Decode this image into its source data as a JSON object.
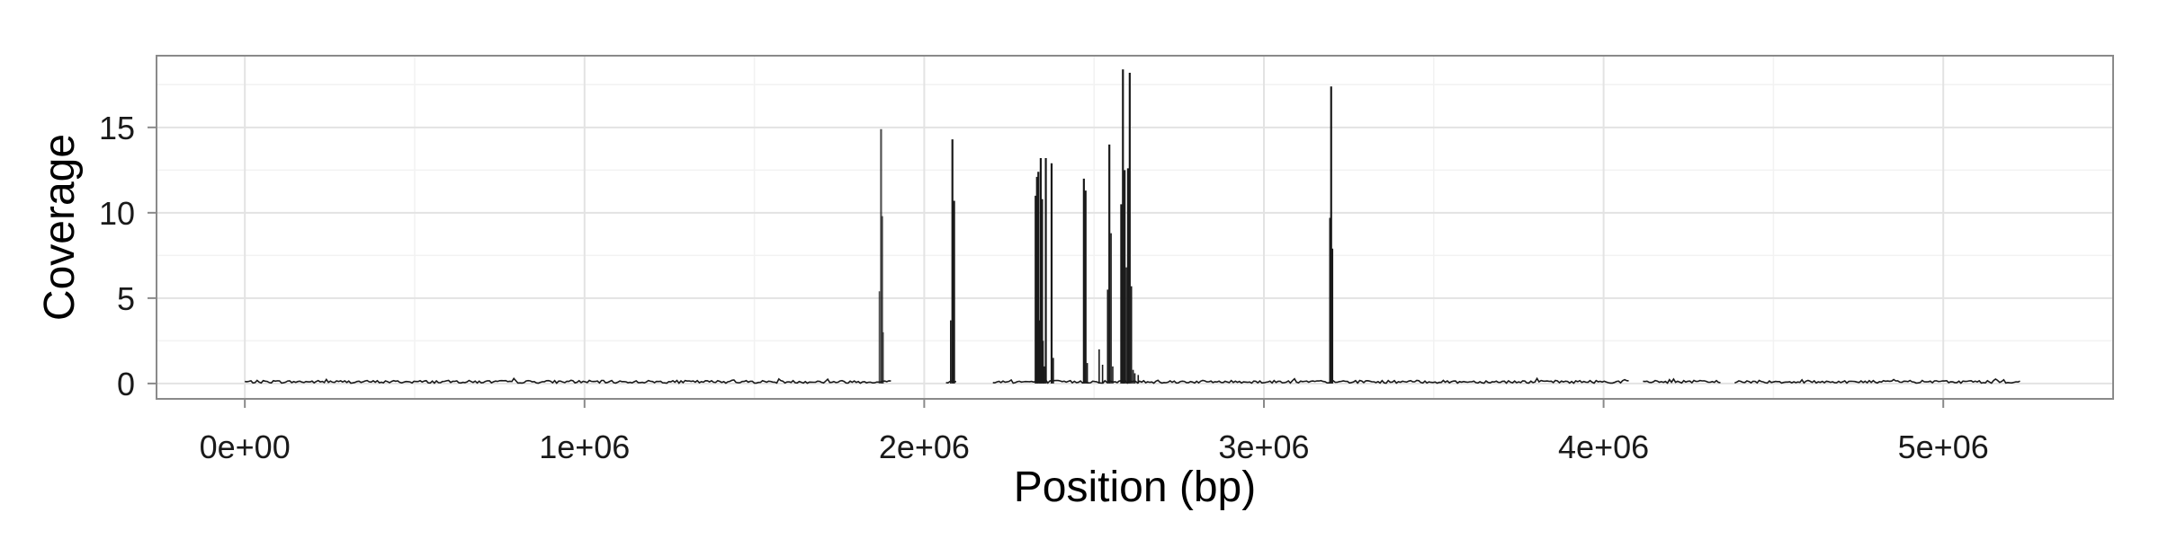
{
  "chart_data": {
    "type": "area",
    "title": "",
    "xlabel": "Position (bp)",
    "ylabel": "Coverage",
    "xlim": [
      -260000,
      5500000
    ],
    "ylim": [
      -0.9,
      19.2
    ],
    "x_ticks": [
      0,
      1000000,
      2000000,
      3000000,
      4000000,
      5000000
    ],
    "x_tick_labels": [
      "0e+00",
      "1e+06",
      "2e+06",
      "3e+06",
      "4e+06",
      "5e+06"
    ],
    "y_ticks": [
      0,
      5,
      10,
      15
    ],
    "y_tick_labels": [
      "0",
      "5",
      "10",
      "15"
    ],
    "grid": true,
    "legend": "none",
    "genome_length": 5230000,
    "background_coverage": 0.1,
    "gaps": [
      [
        1905000,
        2060000
      ],
      [
        2095000,
        2200000
      ],
      [
        4075000,
        4110000
      ],
      [
        4350000,
        4385000
      ]
    ],
    "peaks": {
      "x": [
        1868000,
        1873000,
        1876000,
        1879000,
        2078000,
        2083000,
        2088000,
        2328000,
        2332000,
        2336000,
        2340000,
        2343000,
        2347000,
        2350000,
        2353000,
        2358000,
        2375000,
        2380000,
        2470000,
        2475000,
        2480000,
        2515000,
        2525000,
        2540000,
        2545000,
        2550000,
        2555000,
        2580000,
        2585000,
        2590000,
        2595000,
        2600000,
        2605000,
        2610000,
        2615000,
        2620000,
        2630000,
        3195000,
        3198000,
        3202000
      ],
      "y": [
        5.4,
        14.9,
        9.8,
        3.0,
        3.7,
        14.3,
        10.7,
        11.0,
        12.1,
        12.4,
        3.7,
        13.2,
        10.8,
        2.5,
        1.0,
        13.2,
        12.9,
        1.5,
        12.0,
        11.3,
        1.2,
        2.0,
        1.1,
        5.5,
        14.0,
        8.8,
        1.0,
        10.5,
        18.4,
        12.5,
        6.8,
        12.6,
        18.2,
        5.7,
        0.8,
        0.6,
        0.5,
        9.7,
        17.4,
        7.9
      ]
    },
    "colors": {
      "series": "#1a1a1a",
      "grid_major": "#e3e3e3",
      "grid_minor": "#f2f2f2",
      "panel_border": "#8a8a8a",
      "tick": "#8a8a8a",
      "text": "#1a1a1a"
    }
  }
}
